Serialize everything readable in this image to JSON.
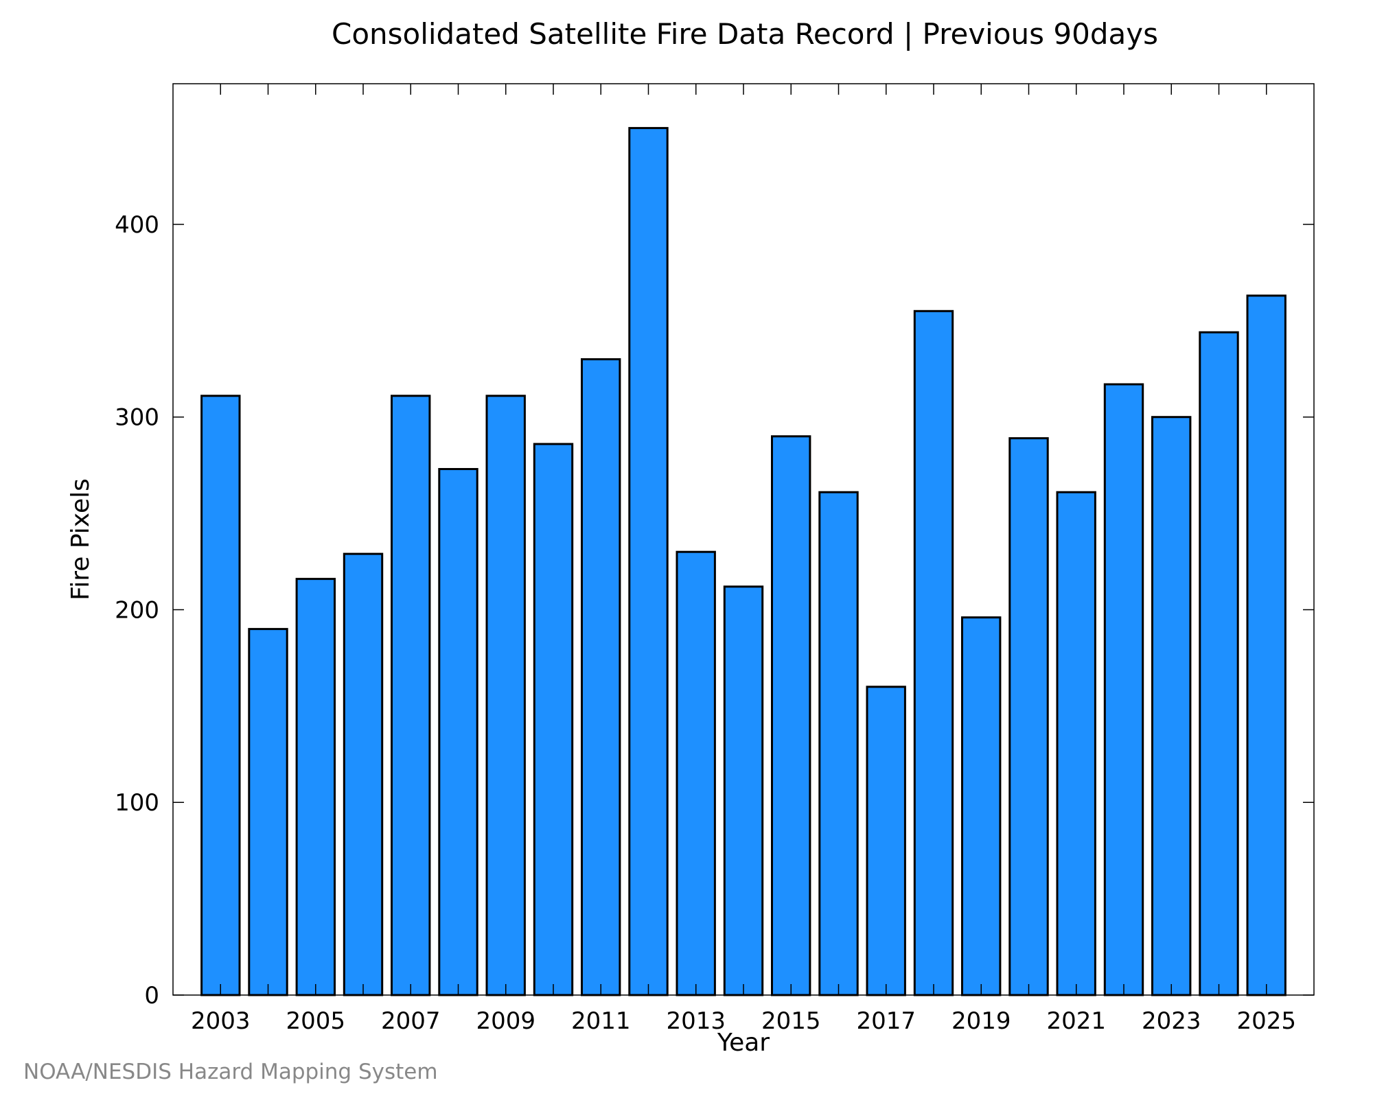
{
  "chart_data": {
    "type": "bar",
    "title": "Consolidated Satellite Fire Data Record | Previous 90days",
    "xlabel": "Year",
    "ylabel": "Fire Pixels",
    "categories": [
      2003,
      2004,
      2005,
      2006,
      2007,
      2008,
      2009,
      2010,
      2011,
      2012,
      2013,
      2014,
      2015,
      2016,
      2017,
      2018,
      2019,
      2020,
      2021,
      2022,
      2023,
      2024,
      2025
    ],
    "values": [
      311,
      190,
      216,
      229,
      311,
      273,
      311,
      286,
      330,
      450,
      230,
      212,
      290,
      261,
      160,
      355,
      196,
      289,
      261,
      317,
      300,
      344,
      363
    ],
    "x_tick_labels": [
      "2003",
      "2005",
      "2007",
      "2009",
      "2011",
      "2013",
      "2015",
      "2017",
      "2019",
      "2021",
      "2023",
      "2025"
    ],
    "y_ticks": [
      0,
      100,
      200,
      300,
      400
    ],
    "y_tick_labels": [
      "0",
      "100",
      "200",
      "300",
      "400"
    ],
    "xlim": [
      2002,
      2026
    ],
    "ylim": [
      0,
      473
    ],
    "grid": false,
    "bar_color": "#1e90ff",
    "bar_edge_color": "#000000"
  },
  "credit": "NOAA/NESDIS Hazard Mapping System"
}
